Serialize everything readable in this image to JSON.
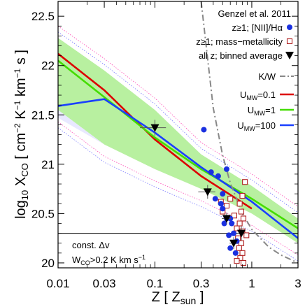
{
  "chart_data": {
    "type": "line",
    "xlabel": "Z [ Z_sun ]",
    "ylabel": "log10 X_CO [ cm^-2 K^-1 km^-1 s ]",
    "x_scale": "log",
    "xlim": [
      0.01,
      3
    ],
    "ylim": [
      19.95,
      22.65
    ],
    "x_ticks": [
      {
        "value": 0.01,
        "label": "0.01"
      },
      {
        "value": 0.03,
        "label": "0.03"
      },
      {
        "value": 0.1,
        "label": "0.1"
      },
      {
        "value": 0.3,
        "label": "0.3"
      },
      {
        "value": 1,
        "label": "1"
      },
      {
        "value": 3,
        "label": "3"
      }
    ],
    "y_ticks": [
      {
        "value": 20,
        "label": "20"
      },
      {
        "value": 20.5,
        "label": "20.5"
      },
      {
        "value": 21,
        "label": "21"
      },
      {
        "value": 21.5,
        "label": "21.5"
      },
      {
        "value": 22,
        "label": "22"
      },
      {
        "value": 22.5,
        "label": "22.5"
      }
    ],
    "grid": false,
    "legend_position": "top-right",
    "legend_header": "Genzel et al. 2011",
    "band": {
      "color": "#b8f0a0",
      "x": [
        0.01,
        0.03,
        0.1,
        0.3,
        1,
        3
      ],
      "upper": [
        22.28,
        21.95,
        21.55,
        21.1,
        20.78,
        20.45
      ],
      "lower": [
        21.55,
        21.2,
        20.95,
        20.75,
        20.5,
        20.2
      ]
    },
    "series": [
      {
        "name": "U_MW=0.1",
        "color": "#dd0000",
        "x": [
          0.01,
          0.03,
          0.1,
          0.3,
          1
        ],
        "y": [
          22.12,
          21.75,
          21.25,
          20.88,
          20.55
        ]
      },
      {
        "name": "U_MW=1",
        "color": "#44dd00",
        "x": [
          0.01,
          0.03,
          0.1,
          0.3,
          1,
          3
        ],
        "y": [
          22.05,
          21.68,
          21.27,
          20.95,
          20.65,
          20.35
        ]
      },
      {
        "name": "U_MW=100",
        "color": "#1a40ff",
        "x": [
          0.01,
          0.03,
          0.1,
          0.3,
          1,
          3
        ],
        "y": [
          21.59,
          21.66,
          21.32,
          20.97,
          20.62,
          20.25
        ]
      },
      {
        "name": "K/W",
        "color": "#888888",
        "style": "dash-dot",
        "x": [
          0.3,
          0.4,
          0.5,
          0.6,
          0.8,
          1.0,
          1.5,
          2.0,
          3.0
        ],
        "y": [
          22.65,
          21.57,
          21.09,
          20.81,
          20.5,
          20.34,
          20.16,
          20.08,
          20.0
        ]
      }
    ],
    "points_nii": {
      "name": "z≥1; [NII]/Hα",
      "color": "#1a30e0",
      "points": [
        [
          0.32,
          21.35
        ],
        [
          0.38,
          20.92
        ],
        [
          0.45,
          20.88
        ],
        [
          0.55,
          20.95
        ],
        [
          0.5,
          20.7
        ],
        [
          0.42,
          20.65
        ],
        [
          0.48,
          20.6
        ],
        [
          0.5,
          20.55
        ],
        [
          0.55,
          20.45
        ],
        [
          0.6,
          20.45
        ],
        [
          0.62,
          20.4
        ],
        [
          0.52,
          20.4
        ],
        [
          0.58,
          20.28
        ],
        [
          0.65,
          20.3
        ],
        [
          0.7,
          20.22
        ],
        [
          0.6,
          20.15
        ],
        [
          0.68,
          20.1
        ]
      ]
    },
    "points_mz": {
      "name": "z≥1; mass-metallicity",
      "color": "#b02020",
      "points": [
        [
          0.85,
          20.82
        ],
        [
          0.8,
          20.68
        ],
        [
          0.75,
          20.6
        ],
        [
          0.78,
          20.52
        ],
        [
          0.82,
          20.45
        ],
        [
          0.75,
          20.4
        ],
        [
          0.7,
          20.35
        ],
        [
          0.8,
          20.32
        ],
        [
          0.72,
          20.25
        ],
        [
          0.78,
          20.2
        ],
        [
          0.74,
          20.15
        ],
        [
          0.8,
          20.1
        ],
        [
          0.76,
          20.05
        ],
        [
          0.7,
          20.02
        ],
        [
          0.82,
          20.0
        ],
        [
          0.6,
          20.65
        ],
        [
          0.55,
          20.58
        ],
        [
          0.5,
          20.52
        ],
        [
          0.48,
          20.62
        ],
        [
          0.66,
          20.48
        ],
        [
          0.88,
          20.28
        ]
      ]
    },
    "binned": {
      "name": "all z; binned average",
      "color": "#000000",
      "points": [
        {
          "x": 0.1,
          "y": 21.37,
          "xerr": 0.03,
          "yerr": 0.08
        },
        {
          "x": 0.35,
          "y": 20.72,
          "xerr": 0.07,
          "yerr": 0.07
        },
        {
          "x": 0.55,
          "y": 20.45,
          "xerr": 0.06,
          "yerr": 0.06
        },
        {
          "x": 0.65,
          "y": 20.2,
          "xerr": 0.06,
          "yerr": 0.06
        },
        {
          "x": 0.78,
          "y": 20.3,
          "xerr": 0.07,
          "yerr": 0.07
        }
      ]
    },
    "hline": {
      "y": 20.3,
      "color": "#000000"
    },
    "annotation_lines": [
      "const. Δv",
      "W_CO>0.2 K km s^-1"
    ]
  },
  "legend": [
    {
      "label": "z≥1; [NII]/Hα",
      "marker": "circle",
      "color": "#1a30e0"
    },
    {
      "label": "z≥1; mass−metallicity",
      "marker": "square-open",
      "color": "#b02020"
    },
    {
      "label": "all z; binned average",
      "marker": "triangle-down",
      "color": "#000000"
    },
    {
      "label": "K/W",
      "marker": "dash-dot",
      "color": "#888888"
    },
    {
      "label": "U_MW=0.1",
      "marker": "line",
      "color": "#dd0000"
    },
    {
      "label": "U_MW=1",
      "marker": "line",
      "color": "#44dd00"
    },
    {
      "label": "U_MW=100",
      "marker": "line",
      "color": "#1a40ff"
    }
  ]
}
